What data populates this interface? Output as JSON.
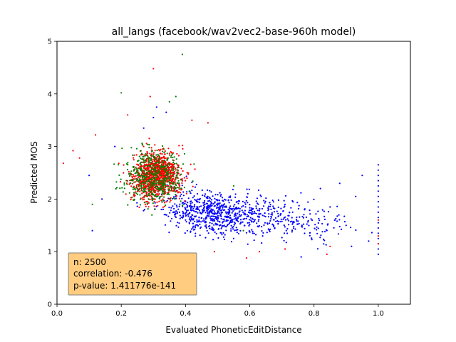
{
  "chart_data": {
    "type": "scatter",
    "title": "all_langs (facebook/wav2vec2-base-960h model)",
    "xlabel": "Evaluated PhoneticEditDistance",
    "ylabel": "Predicted MOS",
    "xlim": [
      0.0,
      1.1
    ],
    "ylim": [
      0,
      5
    ],
    "xticks": [
      "0.0",
      "0.2",
      "0.4",
      "0.6",
      "0.8",
      "1.0"
    ],
    "yticks": [
      "0",
      "1",
      "2",
      "3",
      "4",
      "5"
    ],
    "grid": false,
    "legend": "none",
    "series": [
      {
        "color": "#0000ff",
        "cluster": {
          "count": 900,
          "x_center": 0.48,
          "x_spread": 0.16,
          "x_range": [
            0.22,
            0.98
          ],
          "y_center": 1.75,
          "y_spread": 0.38,
          "y_range": [
            0.85,
            3.1
          ]
        },
        "points": [
          {
            "x": 1.0,
            "y": 2.65
          },
          {
            "x": 1.0,
            "y": 2.55
          },
          {
            "x": 1.0,
            "y": 2.45
          },
          {
            "x": 1.0,
            "y": 2.35
          },
          {
            "x": 1.0,
            "y": 2.25
          },
          {
            "x": 1.0,
            "y": 2.15
          },
          {
            "x": 1.0,
            "y": 2.05
          },
          {
            "x": 1.0,
            "y": 1.95
          },
          {
            "x": 1.0,
            "y": 1.85
          },
          {
            "x": 1.0,
            "y": 1.75
          },
          {
            "x": 1.0,
            "y": 1.65
          },
          {
            "x": 1.0,
            "y": 1.55
          },
          {
            "x": 1.0,
            "y": 1.45
          },
          {
            "x": 1.0,
            "y": 1.35
          },
          {
            "x": 1.0,
            "y": 1.25
          },
          {
            "x": 1.0,
            "y": 1.15
          },
          {
            "x": 1.0,
            "y": 1.05
          },
          {
            "x": 1.0,
            "y": 0.95
          },
          {
            "x": 0.95,
            "y": 2.45
          },
          {
            "x": 0.93,
            "y": 2.05
          },
          {
            "x": 0.88,
            "y": 2.3
          },
          {
            "x": 0.85,
            "y": 1.85
          },
          {
            "x": 0.82,
            "y": 2.2
          },
          {
            "x": 0.9,
            "y": 1.5
          },
          {
            "x": 0.97,
            "y": 1.2
          },
          {
            "x": 0.76,
            "y": 0.9
          },
          {
            "x": 0.1,
            "y": 2.45
          },
          {
            "x": 0.11,
            "y": 1.4
          },
          {
            "x": 0.14,
            "y": 2.0
          },
          {
            "x": 0.18,
            "y": 3.0
          },
          {
            "x": 0.27,
            "y": 3.35
          },
          {
            "x": 0.31,
            "y": 3.75
          },
          {
            "x": 0.34,
            "y": 3.65
          },
          {
            "x": 0.3,
            "y": 3.55
          }
        ]
      },
      {
        "color": "#ff0000",
        "cluster": {
          "count": 1100,
          "x_center": 0.31,
          "x_spread": 0.075,
          "x_range": [
            0.1,
            0.62
          ],
          "y_center": 2.45,
          "y_spread": 0.42,
          "y_range": [
            0.95,
            3.9
          ]
        },
        "points": [
          {
            "x": 0.02,
            "y": 2.68
          },
          {
            "x": 0.05,
            "y": 2.92
          },
          {
            "x": 0.07,
            "y": 2.78
          },
          {
            "x": 0.12,
            "y": 3.22
          },
          {
            "x": 0.3,
            "y": 4.48
          },
          {
            "x": 0.29,
            "y": 3.95
          },
          {
            "x": 0.22,
            "y": 3.6
          },
          {
            "x": 0.42,
            "y": 3.5
          },
          {
            "x": 0.47,
            "y": 3.45
          },
          {
            "x": 0.49,
            "y": 1.0
          },
          {
            "x": 0.59,
            "y": 0.88
          },
          {
            "x": 0.63,
            "y": 1.0
          },
          {
            "x": 0.71,
            "y": 1.05
          },
          {
            "x": 0.84,
            "y": 0.95
          },
          {
            "x": 0.85,
            "y": 1.1
          },
          {
            "x": 1.0,
            "y": 1.3
          },
          {
            "x": 1.0,
            "y": 1.6
          },
          {
            "x": 1.0,
            "y": 1.15
          }
        ]
      },
      {
        "color": "#008000",
        "cluster": {
          "count": 480,
          "x_center": 0.3,
          "x_spread": 0.09,
          "x_range": [
            0.12,
            0.62
          ],
          "y_center": 2.45,
          "y_spread": 0.5,
          "y_range": [
            1.1,
            3.8
          ]
        },
        "points": [
          {
            "x": 0.39,
            "y": 4.75
          },
          {
            "x": 0.2,
            "y": 4.02
          },
          {
            "x": 0.35,
            "y": 3.85
          },
          {
            "x": 0.37,
            "y": 3.95
          },
          {
            "x": 0.11,
            "y": 1.9
          },
          {
            "x": 0.38,
            "y": 0.88
          },
          {
            "x": 0.55,
            "y": 2.25
          },
          {
            "x": 0.58,
            "y": 1.4
          }
        ]
      }
    ],
    "annotations": [
      {
        "kind": "stats-box",
        "lines": [
          "n: 2500",
          "correlation: -0.476",
          "p-value: 1.411776e-141"
        ],
        "facecolor": "#ffcc80",
        "edgecolor": "#808080"
      }
    ]
  }
}
